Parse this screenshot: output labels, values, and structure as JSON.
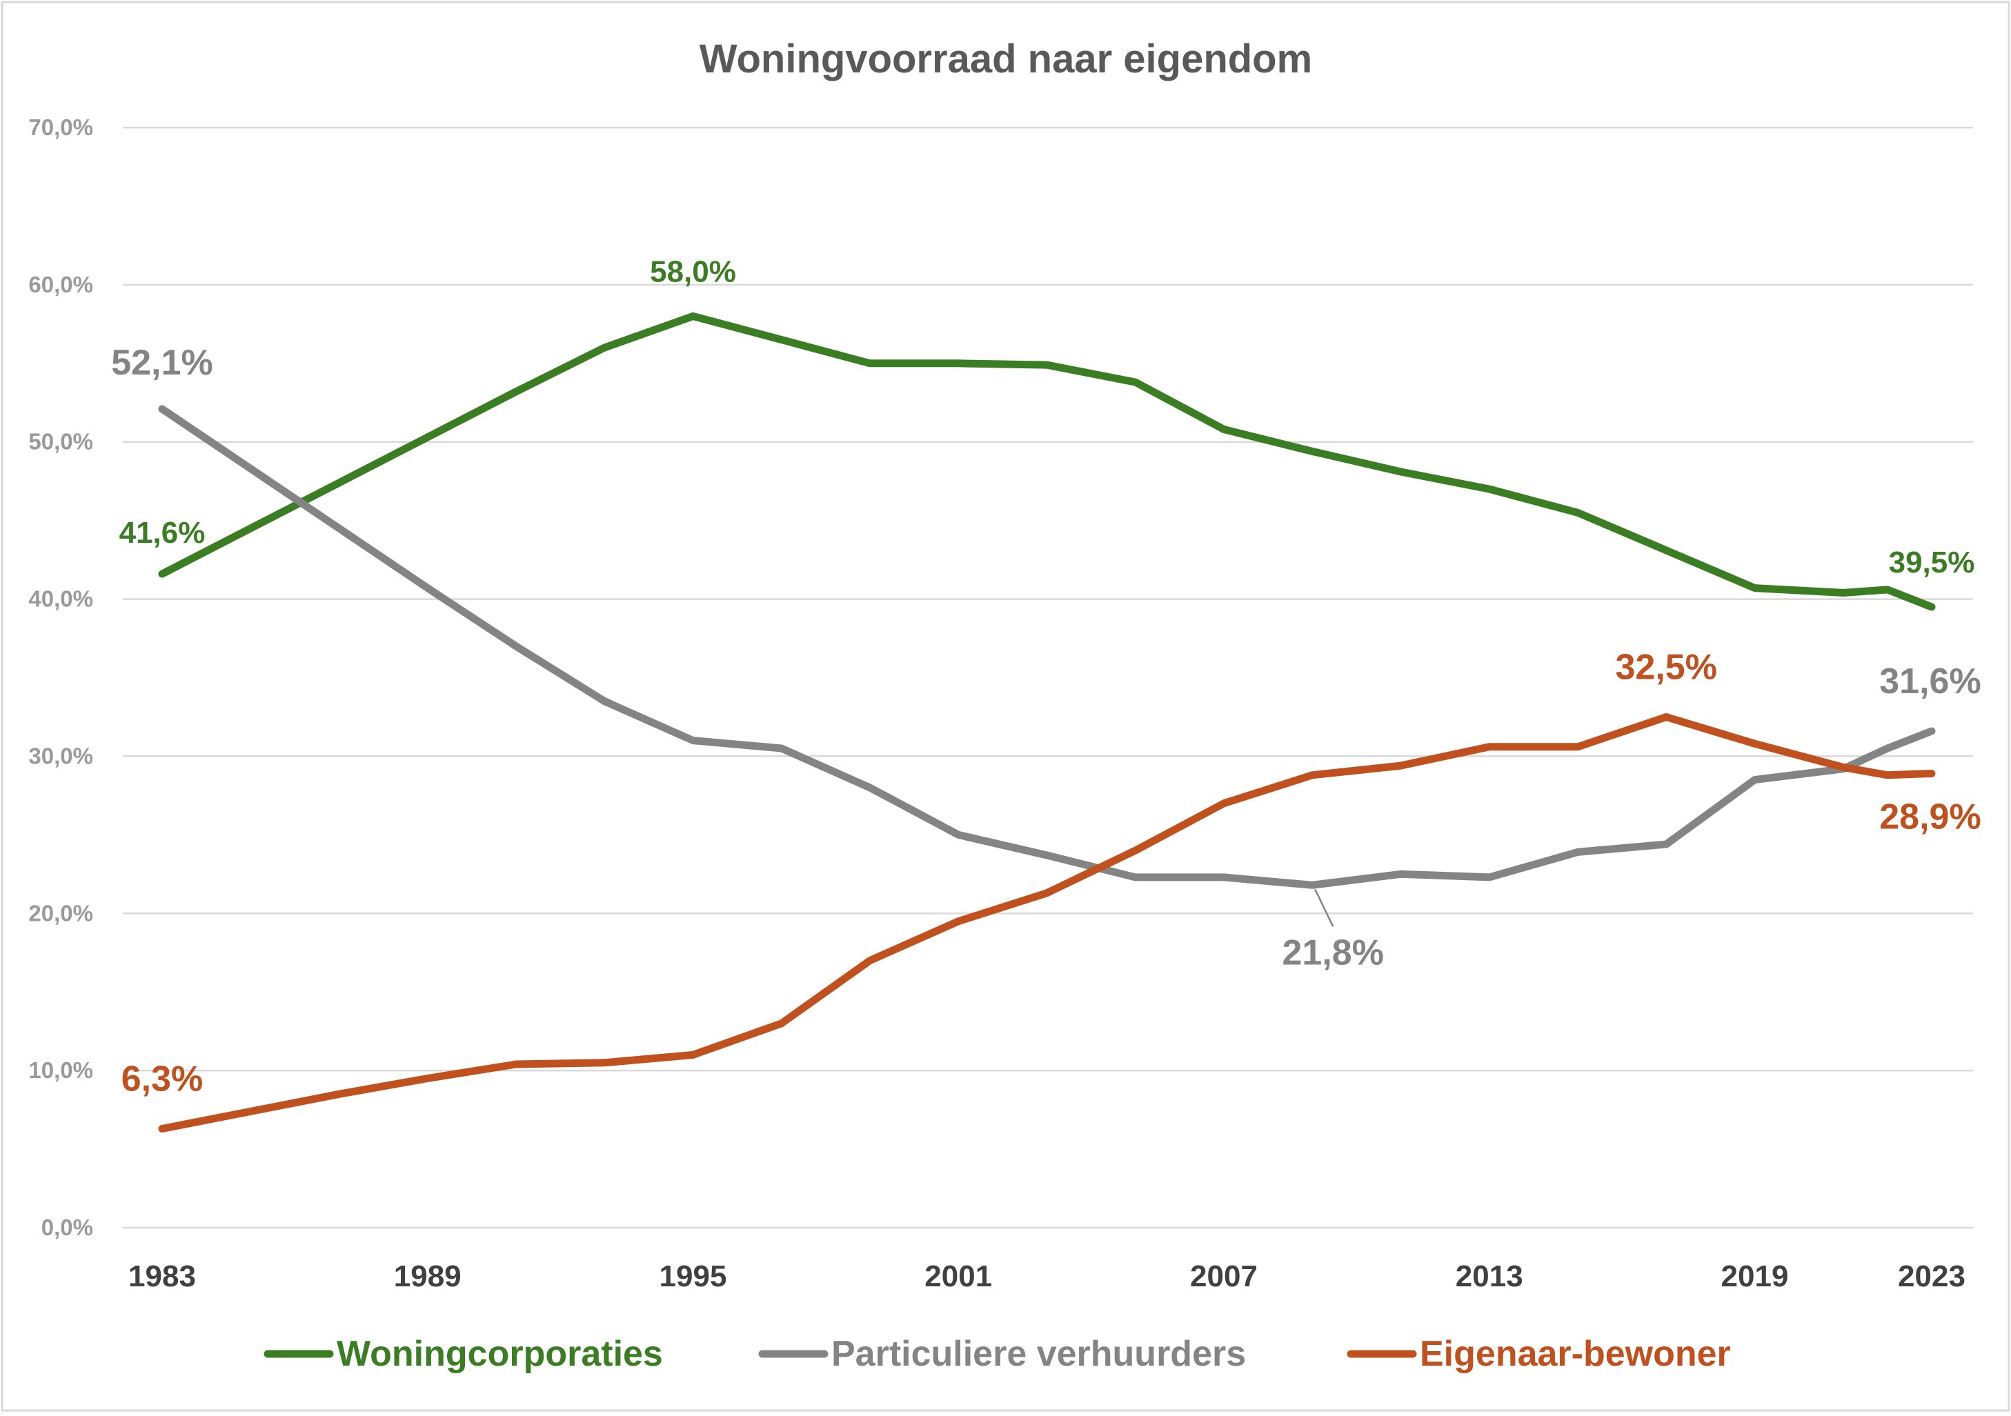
{
  "chart_data": {
    "type": "line",
    "title": "Woningvoorraad naar eigendom",
    "xlabel": "",
    "ylabel": "",
    "x": [
      1983,
      1985,
      1987,
      1989,
      1991,
      1993,
      1995,
      1997,
      1999,
      2001,
      2003,
      2005,
      2007,
      2009,
      2011,
      2013,
      2015,
      2017,
      2019,
      2021,
      2022,
      2023
    ],
    "xlim": [
      1983,
      2023
    ],
    "x_ticks": [
      "1983",
      "1989",
      "1995",
      "2001",
      "2007",
      "2013",
      "2019",
      "2023"
    ],
    "x_tick_values": [
      1983,
      1989,
      1995,
      2001,
      2007,
      2013,
      2019,
      2023
    ],
    "ylim": [
      0,
      70
    ],
    "y_ticks": [
      "0,0%",
      "10,0%",
      "20,0%",
      "30,0%",
      "40,0%",
      "50,0%",
      "60,0%",
      "70,0%"
    ],
    "y_tick_values": [
      0,
      10,
      20,
      30,
      40,
      50,
      60,
      70
    ],
    "grid": true,
    "legend_position": "bottom",
    "series": [
      {
        "name": "Woningcorporaties",
        "color": "#3a7d22",
        "values": [
          41.6,
          44.5,
          47.4,
          50.3,
          53.2,
          56.0,
          58.0,
          56.5,
          55.0,
          55.0,
          54.9,
          53.8,
          50.8,
          49.4,
          48.1,
          47.0,
          45.5,
          43.1,
          40.7,
          40.4,
          40.6,
          39.5
        ]
      },
      {
        "name": "Particuliere verhuurders",
        "color": "#848484",
        "values": [
          52.1,
          48.3,
          44.5,
          40.7,
          37.0,
          33.5,
          31.0,
          30.5,
          28.0,
          25.0,
          23.7,
          22.3,
          22.3,
          21.8,
          22.5,
          22.3,
          23.9,
          24.4,
          28.5,
          29.2,
          30.5,
          31.6
        ]
      },
      {
        "name": "Eigenaar-bewoner",
        "color": "#c0501e",
        "values": [
          6.3,
          7.4,
          8.5,
          9.5,
          10.4,
          10.5,
          11.0,
          13.0,
          17.0,
          19.5,
          21.3,
          24.0,
          27.0,
          28.8,
          29.4,
          30.6,
          30.6,
          32.5,
          30.8,
          29.3,
          28.8,
          28.9
        ]
      }
    ],
    "annotations": [
      {
        "series": 0,
        "x": 1983,
        "text": "41,6%"
      },
      {
        "series": 0,
        "x": 1995,
        "text": "58,0%"
      },
      {
        "series": 0,
        "x": 2023,
        "text": "39,5%"
      },
      {
        "series": 1,
        "x": 1983,
        "text": "52,1%"
      },
      {
        "series": 1,
        "x": 2009,
        "text": "21,8%"
      },
      {
        "series": 1,
        "x": 2023,
        "text": "31,6%"
      },
      {
        "series": 2,
        "x": 1983,
        "text": "6,3%"
      },
      {
        "series": 2,
        "x": 2017,
        "text": "32,5%"
      },
      {
        "series": 2,
        "x": 2023,
        "text": "28,9%"
      }
    ]
  }
}
